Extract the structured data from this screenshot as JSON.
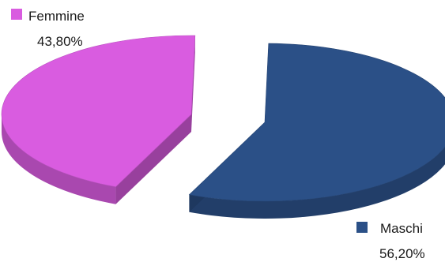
{
  "chart_data": {
    "type": "pie",
    "style": "3d-exploded",
    "title": "",
    "legend_placement": "inline-near-slices",
    "series": [
      {
        "name": "Maschi",
        "value": 56.2,
        "label": "56,20%",
        "color": "#2b5087"
      },
      {
        "name": "Femmine",
        "value": 43.8,
        "label": "43,80%",
        "color": "#d95ce0"
      }
    ]
  }
}
